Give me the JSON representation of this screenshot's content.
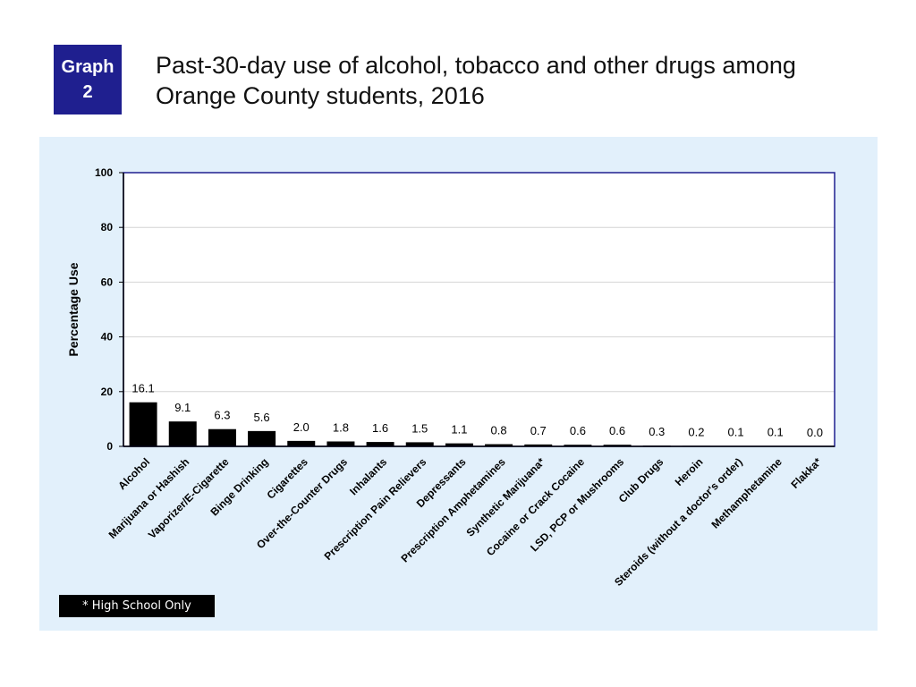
{
  "badge": {
    "line1": "Graph",
    "line2": "2",
    "background": "#1f1f8f"
  },
  "title": {
    "line1": "Past-30-day use of alcohol, tobacco and other drugs among",
    "line2": "Orange County students, 2016"
  },
  "footnote": "* High School Only",
  "colors": {
    "panel_background": "#e2f0fb",
    "bar": "#000000",
    "axis_frame": "#1f1f8f"
  },
  "chart_data": {
    "type": "bar",
    "title": "",
    "xlabel": "",
    "ylabel": "Percentage Use",
    "ylim": [
      0,
      100
    ],
    "yticks": [
      0,
      20,
      40,
      60,
      80,
      100
    ],
    "grid": true,
    "categories": [
      "Alcohol",
      "Marijuana or Hashish",
      "Vaporizer/E-Cigarette",
      "Binge Drinking",
      "Cigarettes",
      "Over-the-Counter Drugs",
      "Inhalants",
      "Prescription Pain Relievers",
      "Depressants",
      "Prescription Amphetamines",
      "Synthetic Marijuana*",
      "Cocaine or Crack Cocaine",
      "LSD, PCP or Mushrooms",
      "Club Drugs",
      "Heroin",
      "Steroids (without a doctor's order)",
      "Methamphetamine",
      "Flakka*"
    ],
    "values": [
      16.1,
      9.1,
      6.3,
      5.6,
      2.0,
      1.8,
      1.6,
      1.5,
      1.1,
      0.8,
      0.7,
      0.6,
      0.6,
      0.3,
      0.2,
      0.1,
      0.1,
      0.0
    ],
    "data_labels": [
      "16.1",
      "9.1",
      "6.3",
      "5.6",
      "2.0",
      "1.8",
      "1.6",
      "1.5",
      "1.1",
      "0.8",
      "0.7",
      "0.6",
      "0.6",
      "0.3",
      "0.2",
      "0.1",
      "0.1",
      "0.0"
    ]
  }
}
